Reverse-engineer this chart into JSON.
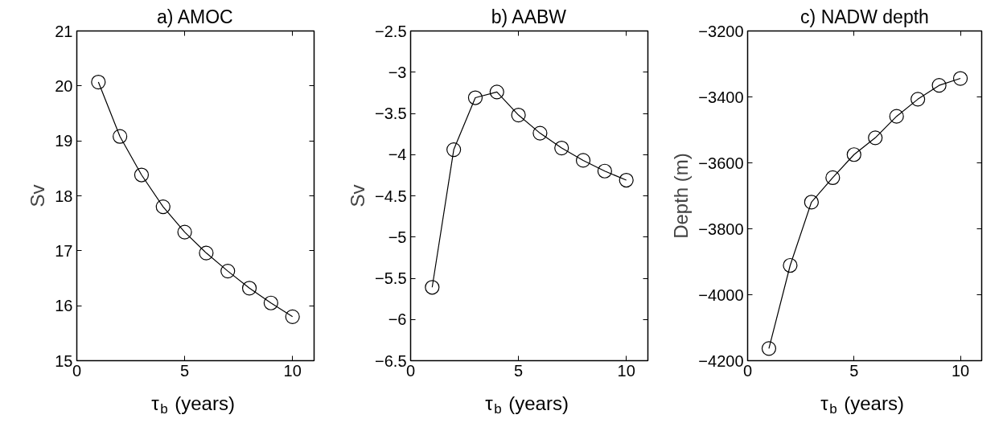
{
  "chart_data": [
    {
      "type": "line",
      "title": "a) AMOC",
      "xlabel": "τ$_{b}$ (years)",
      "ylabel": "Sv",
      "marker": "circle",
      "color": "#000000",
      "x": [
        1,
        2,
        3,
        4,
        5,
        6,
        7,
        8,
        9,
        10
      ],
      "values": [
        20.07,
        19.08,
        18.38,
        17.8,
        17.34,
        16.96,
        16.63,
        16.32,
        16.05,
        15.8
      ],
      "xlim": [
        0,
        11
      ],
      "ylim": [
        15,
        21
      ],
      "xticks": [
        0,
        5,
        10
      ],
      "yticks": [
        15,
        16,
        17,
        18,
        19,
        20,
        21
      ]
    },
    {
      "type": "line",
      "title": "b) AABW",
      "xlabel": "τ$_{b}$ (years)",
      "ylabel": "Sv",
      "marker": "circle",
      "color": "#000000",
      "x": [
        1,
        2,
        3,
        4,
        5,
        6,
        7,
        8,
        9,
        10
      ],
      "values": [
        -5.61,
        -3.94,
        -3.31,
        -3.24,
        -3.52,
        -3.74,
        -3.92,
        -4.07,
        -4.2,
        -4.31
      ],
      "xlim": [
        0,
        11
      ],
      "ylim": [
        -6.5,
        -2.5
      ],
      "xticks": [
        0,
        5,
        10
      ],
      "yticks": [
        -6.5,
        -6,
        -5.5,
        -5,
        -4.5,
        -4,
        -3.5,
        -3,
        -2.5
      ]
    },
    {
      "type": "line",
      "title": "c) NADW depth",
      "xlabel": "τ$_{b}$ (years)",
      "ylabel": "Depth (m)",
      "marker": "circle",
      "color": "#000000",
      "x": [
        1,
        2,
        3,
        4,
        5,
        6,
        7,
        8,
        9,
        10
      ],
      "values": [
        -4163,
        -3911,
        -3719,
        -3645,
        -3575,
        -3524,
        -3459,
        -3407,
        -3365,
        -3344
      ],
      "xlim": [
        0,
        11
      ],
      "ylim": [
        -4200,
        -3200
      ],
      "xticks": [
        0,
        5,
        10
      ],
      "yticks": [
        -4200,
        -4000,
        -3800,
        -3600,
        -3400,
        -3200
      ]
    }
  ]
}
